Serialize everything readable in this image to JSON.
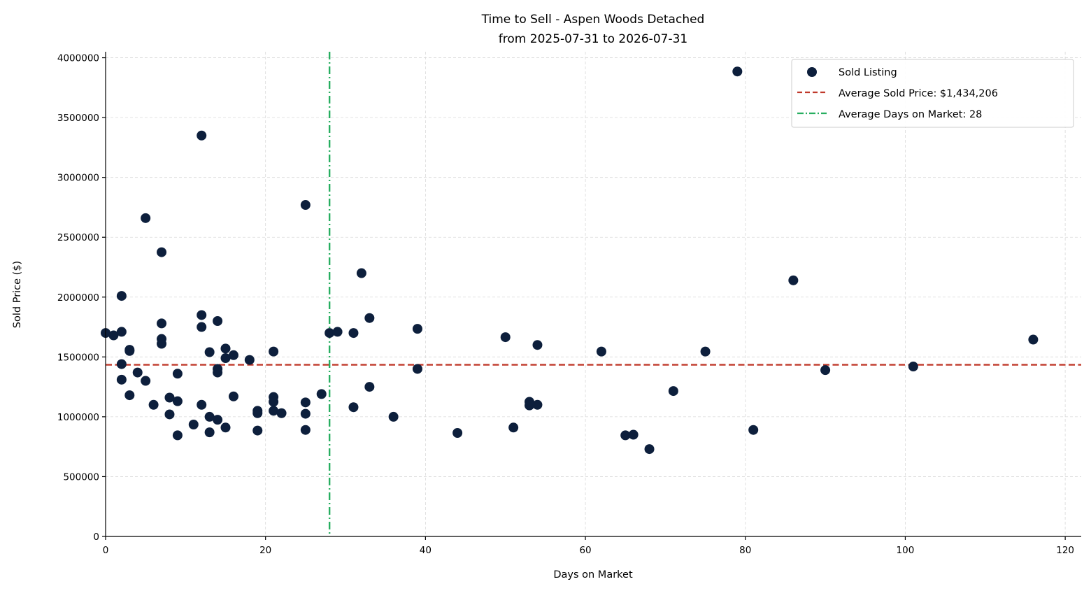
{
  "chart_data": {
    "type": "scatter",
    "title": "Time to Sell - Aspen Woods Detached",
    "subtitle": "from 2025-07-31 to 2026-07-31",
    "xlabel": "Days on Market",
    "ylabel": "Sold Price ($)",
    "xlim": [
      0,
      122
    ],
    "ylim": [
      0,
      4050000
    ],
    "xticks": [
      0,
      20,
      40,
      60,
      80,
      100,
      120
    ],
    "yticks": [
      0,
      500000,
      1000000,
      1500000,
      2000000,
      2500000,
      3000000,
      3500000,
      4000000
    ],
    "grid": true,
    "legend_position": "top-right",
    "colors": {
      "points": "#0d1f3c",
      "avg_price_line": "#c0392b",
      "avg_days_line": "#27ae60"
    },
    "series": [
      {
        "name": "Sold Listing",
        "points": [
          [
            0,
            1700000
          ],
          [
            1,
            1680000
          ],
          [
            2,
            2010000
          ],
          [
            2,
            1710000
          ],
          [
            2,
            1440000
          ],
          [
            2,
            1310000
          ],
          [
            3,
            1560000
          ],
          [
            3,
            1550000
          ],
          [
            3,
            1180000
          ],
          [
            4,
            1370000
          ],
          [
            5,
            2660000
          ],
          [
            5,
            1300000
          ],
          [
            6,
            1100000
          ],
          [
            7,
            2375000
          ],
          [
            7,
            1780000
          ],
          [
            7,
            1650000
          ],
          [
            7,
            1610000
          ],
          [
            8,
            1160000
          ],
          [
            8,
            1020000
          ],
          [
            9,
            1360000
          ],
          [
            9,
            1130000
          ],
          [
            9,
            845000
          ],
          [
            11,
            935000
          ],
          [
            12,
            3350000
          ],
          [
            12,
            1850000
          ],
          [
            12,
            1750000
          ],
          [
            12,
            1100000
          ],
          [
            13,
            1540000
          ],
          [
            13,
            1000000
          ],
          [
            13,
            870000
          ],
          [
            14,
            1800000
          ],
          [
            14,
            1400000
          ],
          [
            14,
            1370000
          ],
          [
            14,
            975000
          ],
          [
            15,
            1570000
          ],
          [
            15,
            1490000
          ],
          [
            15,
            910000
          ],
          [
            16,
            1515000
          ],
          [
            16,
            1170000
          ],
          [
            18,
            1475000
          ],
          [
            19,
            1050000
          ],
          [
            19,
            1030000
          ],
          [
            19,
            885000
          ],
          [
            21,
            1545000
          ],
          [
            21,
            1165000
          ],
          [
            21,
            1125000
          ],
          [
            21,
            1050000
          ],
          [
            22,
            1030000
          ],
          [
            25,
            2770000
          ],
          [
            25,
            1120000
          ],
          [
            25,
            1025000
          ],
          [
            25,
            890000
          ],
          [
            27,
            1190000
          ],
          [
            28,
            1700000
          ],
          [
            29,
            1710000
          ],
          [
            31,
            1700000
          ],
          [
            31,
            1080000
          ],
          [
            32,
            2200000
          ],
          [
            33,
            1825000
          ],
          [
            33,
            1250000
          ],
          [
            36,
            1000000
          ],
          [
            39,
            1735000
          ],
          [
            39,
            1400000
          ],
          [
            44,
            865000
          ],
          [
            50,
            1665000
          ],
          [
            51,
            910000
          ],
          [
            53,
            1125000
          ],
          [
            53,
            1095000
          ],
          [
            54,
            1600000
          ],
          [
            54,
            1100000
          ],
          [
            62,
            1545000
          ],
          [
            65,
            845000
          ],
          [
            66,
            850000
          ],
          [
            68,
            730000
          ],
          [
            71,
            1215000
          ],
          [
            75,
            1545000
          ],
          [
            79,
            3885000
          ],
          [
            81,
            890000
          ],
          [
            86,
            2140000
          ],
          [
            90,
            1390000
          ],
          [
            101,
            1420000
          ],
          [
            116,
            1645000
          ]
        ]
      }
    ],
    "reference_lines": [
      {
        "name": "Average Sold Price: $1,434,206",
        "orientation": "horizontal",
        "value": 1434206,
        "style": "dashed"
      },
      {
        "name": "Average Days on Market: 28",
        "orientation": "vertical",
        "value": 28,
        "style": "dashdot"
      }
    ]
  }
}
